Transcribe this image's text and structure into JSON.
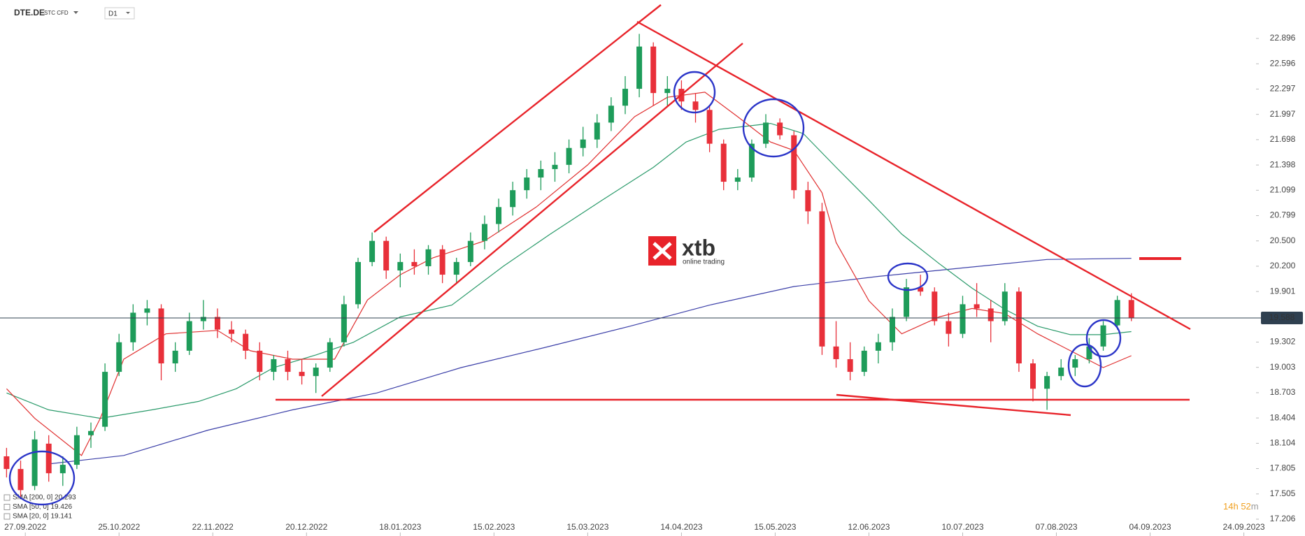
{
  "header": {
    "symbol": "DTE.DE",
    "market": "STC CFD",
    "interval": "D1"
  },
  "logo": {
    "brand": "xtb",
    "tagline": "online trading"
  },
  "countdown": {
    "hours": "14h",
    "minutes": "52",
    "unit": "m"
  },
  "chart_data": {
    "type": "candlestick",
    "up_color": "#1e9c5a",
    "down_color": "#e8303a",
    "grid": false,
    "xlim": [
      -1.4,
      266.3
    ],
    "ylim": [
      17.007,
      23.351
    ],
    "current_price": 19.588,
    "xticks": [
      {
        "value": 4,
        "label": "27.09.2022"
      },
      {
        "value": 24,
        "label": "25.10.2022"
      },
      {
        "value": 44,
        "label": "22.11.2022"
      },
      {
        "value": 64,
        "label": "20.12.2022"
      },
      {
        "value": 84,
        "label": "18.01.2023"
      },
      {
        "value": 104,
        "label": "15.02.2023"
      },
      {
        "value": 124,
        "label": "15.03.2023"
      },
      {
        "value": 144,
        "label": "14.04.2023"
      },
      {
        "value": 164,
        "label": "15.05.2023"
      },
      {
        "value": 184,
        "label": "12.06.2023"
      },
      {
        "value": 204,
        "label": "10.07.2023"
      },
      {
        "value": 224,
        "label": "07.08.2023"
      },
      {
        "value": 244,
        "label": "04.09.2023"
      },
      {
        "value": 264,
        "label": "24.09.2023"
      }
    ],
    "yticks": [
      22.896,
      22.596,
      22.297,
      21.997,
      21.698,
      21.398,
      21.099,
      20.799,
      {
        "value": 20.5,
        "label": "20.500"
      },
      {
        "value": 20.2,
        "label": "20.200"
      },
      19.901,
      19.302,
      19.003,
      18.703,
      18.404,
      18.104,
      17.805,
      17.505,
      17.206
    ],
    "x": [
      0,
      3,
      6,
      9,
      12,
      15,
      18,
      21,
      24,
      27,
      30,
      33,
      36,
      39,
      42,
      45,
      48,
      51,
      54,
      57,
      60,
      63,
      66,
      69,
      72,
      75,
      78,
      81,
      84,
      87,
      90,
      93,
      96,
      99,
      102,
      105,
      108,
      111,
      114,
      117,
      120,
      123,
      126,
      129,
      132,
      135,
      138,
      141,
      144,
      147,
      150,
      153,
      156,
      159,
      162,
      165,
      168,
      171,
      174,
      177,
      180,
      183,
      186,
      189,
      192,
      195,
      198,
      201,
      204,
      207,
      210,
      213,
      216,
      219,
      222,
      225,
      228,
      231,
      234,
      237,
      240
    ],
    "open": [
      17.95,
      17.8,
      17.6,
      18.1,
      17.75,
      17.85,
      18.2,
      18.3,
      18.95,
      19.3,
      19.65,
      19.7,
      19.05,
      19.2,
      19.55,
      19.6,
      19.45,
      19.4,
      19.2,
      18.95,
      19.1,
      18.95,
      18.9,
      19.0,
      19.3,
      19.75,
      20.25,
      20.5,
      20.15,
      20.25,
      20.2,
      20.4,
      20.1,
      20.25,
      20.5,
      20.7,
      20.9,
      21.1,
      21.25,
      21.35,
      21.4,
      21.6,
      21.7,
      21.9,
      22.1,
      22.3,
      22.8,
      22.25,
      22.3,
      22.15,
      22.05,
      21.65,
      21.2,
      21.25,
      21.65,
      21.9,
      21.75,
      21.1,
      20.85,
      19.25,
      19.1,
      18.95,
      19.2,
      19.3,
      19.6,
      19.95,
      19.9,
      19.55,
      19.4,
      19.75,
      19.7,
      19.55,
      19.9,
      19.05,
      18.75,
      18.9,
      19.0,
      19.1,
      19.25,
      19.5,
      19.8
    ],
    "high": [
      18.05,
      17.9,
      18.25,
      18.2,
      17.95,
      18.3,
      18.35,
      19.05,
      19.4,
      19.75,
      19.8,
      19.75,
      19.3,
      19.65,
      19.8,
      19.7,
      19.55,
      19.45,
      19.3,
      19.15,
      19.2,
      19.1,
      19.05,
      19.35,
      19.85,
      20.3,
      20.6,
      20.55,
      20.35,
      20.4,
      20.45,
      20.45,
      20.3,
      20.6,
      20.8,
      21.0,
      21.2,
      21.35,
      21.45,
      21.55,
      21.7,
      21.85,
      22.0,
      22.2,
      22.45,
      22.95,
      22.85,
      22.45,
      22.4,
      22.25,
      22.1,
      21.7,
      21.35,
      21.7,
      22.0,
      21.95,
      21.8,
      21.2,
      20.95,
      19.55,
      19.3,
      19.25,
      19.4,
      19.7,
      20.05,
      20.1,
      19.95,
      19.65,
      19.85,
      20.0,
      19.8,
      20.0,
      19.95,
      19.1,
      18.95,
      19.1,
      19.15,
      19.35,
      19.55,
      19.85,
      19.88
    ],
    "low": [
      17.7,
      17.45,
      17.55,
      17.65,
      17.6,
      17.8,
      18.05,
      18.25,
      18.9,
      19.2,
      19.5,
      18.85,
      18.95,
      19.15,
      19.45,
      19.35,
      19.3,
      19.1,
      18.85,
      18.85,
      18.85,
      18.8,
      18.7,
      18.95,
      19.25,
      19.7,
      20.2,
      20.05,
      19.95,
      20.1,
      20.1,
      20.0,
      20.0,
      20.2,
      20.4,
      20.6,
      20.8,
      21.0,
      21.1,
      21.2,
      21.3,
      21.5,
      21.6,
      21.8,
      22.0,
      22.2,
      22.1,
      22.1,
      22.05,
      21.9,
      21.55,
      21.1,
      21.1,
      21.2,
      21.6,
      21.7,
      21.0,
      20.7,
      19.15,
      19.0,
      18.85,
      18.9,
      19.05,
      19.2,
      19.55,
      19.85,
      19.5,
      19.25,
      19.35,
      19.6,
      19.3,
      19.5,
      18.95,
      18.6,
      18.5,
      18.85,
      18.9,
      19.05,
      19.2,
      19.45,
      19.55
    ],
    "close": [
      17.8,
      17.55,
      18.15,
      17.75,
      17.85,
      18.2,
      18.25,
      18.95,
      19.3,
      19.65,
      19.7,
      19.05,
      19.2,
      19.55,
      19.6,
      19.45,
      19.4,
      19.2,
      18.95,
      19.1,
      18.95,
      18.9,
      19.0,
      19.3,
      19.75,
      20.25,
      20.5,
      20.15,
      20.25,
      20.2,
      20.4,
      20.1,
      20.25,
      20.5,
      20.7,
      20.9,
      21.1,
      21.25,
      21.35,
      21.4,
      21.6,
      21.7,
      21.9,
      22.1,
      22.3,
      22.8,
      22.25,
      22.3,
      22.15,
      22.05,
      21.65,
      21.2,
      21.25,
      21.65,
      21.9,
      21.75,
      21.1,
      20.85,
      19.25,
      19.1,
      18.95,
      19.2,
      19.3,
      19.6,
      19.95,
      19.9,
      19.55,
      19.4,
      19.75,
      19.7,
      19.55,
      19.9,
      19.05,
      18.75,
      18.9,
      19.0,
      19.1,
      19.25,
      19.5,
      19.8,
      19.59
    ],
    "series": [
      {
        "name": "SMA [200, 0] 20.293",
        "color": "#3b3fa8",
        "x": [
          9,
          25,
          43,
          61,
          79,
          97,
          115,
          133,
          150,
          168,
          186,
          204,
          222,
          240
        ],
        "values": [
          17.86,
          17.96,
          18.26,
          18.5,
          18.7,
          19.0,
          19.24,
          19.49,
          19.74,
          19.96,
          20.08,
          20.18,
          20.28,
          20.293
        ]
      },
      {
        "name": "SMA [50, 0] 19.426",
        "color": "#2a9a6a",
        "x": [
          0,
          9,
          20,
          31,
          41,
          49,
          57,
          66,
          74,
          84,
          95,
          106,
          116,
          127,
          138,
          145,
          152,
          163,
          170,
          177,
          184,
          191,
          199,
          206,
          213,
          220,
          227,
          234,
          240
        ],
        "values": [
          18.7,
          18.5,
          18.4,
          18.5,
          18.6,
          18.75,
          19.0,
          19.15,
          19.3,
          19.6,
          19.74,
          20.2,
          20.58,
          20.98,
          21.37,
          21.67,
          21.82,
          21.89,
          21.77,
          21.37,
          20.98,
          20.58,
          20.23,
          19.94,
          19.69,
          19.49,
          19.39,
          19.39,
          19.426
        ]
      },
      {
        "name": "SMA [20, 0] 19.141",
        "color": "#e03030",
        "x": [
          0,
          6,
          16,
          20,
          25,
          34,
          45,
          52,
          61,
          70,
          77,
          84,
          91,
          102,
          113,
          124,
          134,
          141,
          149,
          156,
          163,
          168,
          174,
          177,
          184,
          191,
          199,
          206,
          213,
          220,
          227,
          234,
          240
        ],
        "values": [
          18.75,
          18.4,
          17.96,
          18.4,
          19.1,
          19.4,
          19.44,
          19.2,
          19.1,
          19.1,
          19.8,
          20.1,
          20.3,
          20.5,
          20.9,
          21.4,
          21.97,
          22.2,
          22.26,
          21.97,
          21.67,
          21.57,
          21.07,
          20.48,
          19.79,
          19.4,
          19.6,
          19.7,
          19.64,
          19.4,
          19.2,
          19.0,
          19.141
        ]
      }
    ]
  }
}
